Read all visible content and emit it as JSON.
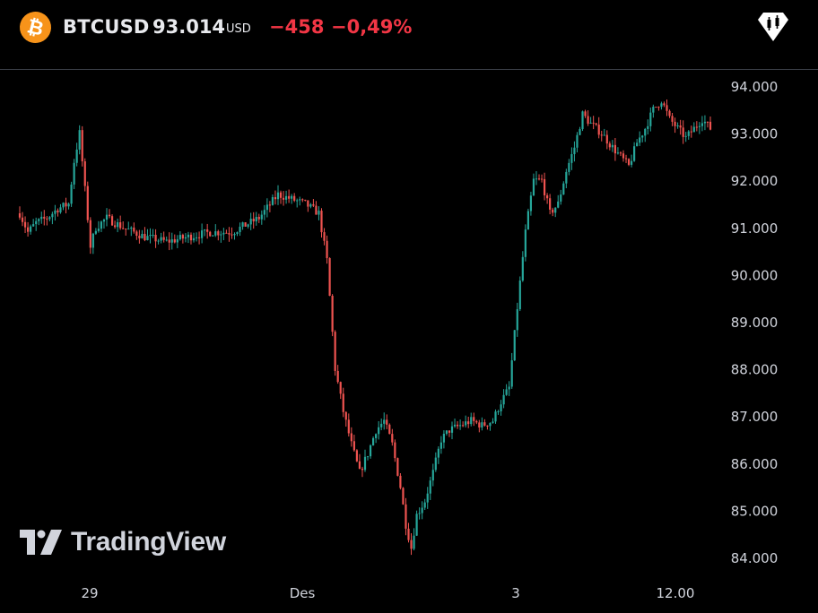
{
  "header": {
    "coin_glyph": "₿",
    "symbol": "BTCUSD",
    "price": "93.014",
    "currency": "USD",
    "change": "−458",
    "change_pct": "−0,49%"
  },
  "branding": {
    "logo_text": "TradingView"
  },
  "colors": {
    "up": "#26a69a",
    "down": "#ef5350",
    "background": "#000000",
    "axis_text": "#d1d4dc"
  },
  "chart_data": {
    "type": "candlestick",
    "title": "",
    "y_ticks": [
      "94.000",
      "93.000",
      "92.000",
      "91.000",
      "90.000",
      "89.000",
      "88.000",
      "87.000",
      "86.000",
      "85.000",
      "84.000"
    ],
    "x_ticks": [
      "29",
      "Des",
      "3",
      "12.00"
    ],
    "ylim": [
      83700,
      94300
    ],
    "price_path": [
      [
        0,
        91300
      ],
      [
        3,
        90900
      ],
      [
        6,
        91100
      ],
      [
        10,
        91200
      ],
      [
        14,
        91400
      ],
      [
        18,
        91500
      ],
      [
        20,
        92400
      ],
      [
        22,
        93000
      ],
      [
        24,
        91800
      ],
      [
        26,
        90600
      ],
      [
        28,
        91000
      ],
      [
        32,
        91200
      ],
      [
        38,
        91000
      ],
      [
        46,
        90800
      ],
      [
        54,
        90700
      ],
      [
        62,
        90800
      ],
      [
        70,
        90900
      ],
      [
        78,
        90900
      ],
      [
        88,
        91200
      ],
      [
        95,
        91700
      ],
      [
        100,
        91600
      ],
      [
        105,
        91500
      ],
      [
        110,
        91300
      ],
      [
        113,
        90300
      ],
      [
        116,
        88000
      ],
      [
        119,
        87100
      ],
      [
        122,
        86400
      ],
      [
        125,
        85800
      ],
      [
        128,
        86200
      ],
      [
        131,
        86700
      ],
      [
        134,
        86900
      ],
      [
        137,
        86400
      ],
      [
        140,
        85500
      ],
      [
        142,
        84700
      ],
      [
        144,
        84200
      ],
      [
        146,
        84900
      ],
      [
        149,
        85200
      ],
      [
        152,
        85800
      ],
      [
        155,
        86500
      ],
      [
        158,
        86700
      ],
      [
        162,
        86800
      ],
      [
        166,
        86900
      ],
      [
        170,
        86800
      ],
      [
        174,
        86900
      ],
      [
        177,
        87300
      ],
      [
        180,
        87600
      ],
      [
        183,
        89300
      ],
      [
        186,
        90900
      ],
      [
        189,
        92000
      ],
      [
        192,
        92000
      ],
      [
        195,
        91300
      ],
      [
        198,
        91500
      ],
      [
        201,
        92200
      ],
      [
        204,
        92700
      ],
      [
        207,
        93400
      ],
      [
        210,
        93200
      ],
      [
        214,
        93000
      ],
      [
        218,
        92700
      ],
      [
        221,
        92500
      ],
      [
        224,
        92300
      ],
      [
        227,
        92800
      ],
      [
        230,
        93100
      ],
      [
        233,
        93500
      ],
      [
        236,
        93700
      ],
      [
        239,
        93300
      ],
      [
        242,
        93100
      ],
      [
        245,
        92900
      ],
      [
        248,
        93100
      ],
      [
        251,
        93300
      ],
      [
        254,
        93100
      ]
    ]
  }
}
